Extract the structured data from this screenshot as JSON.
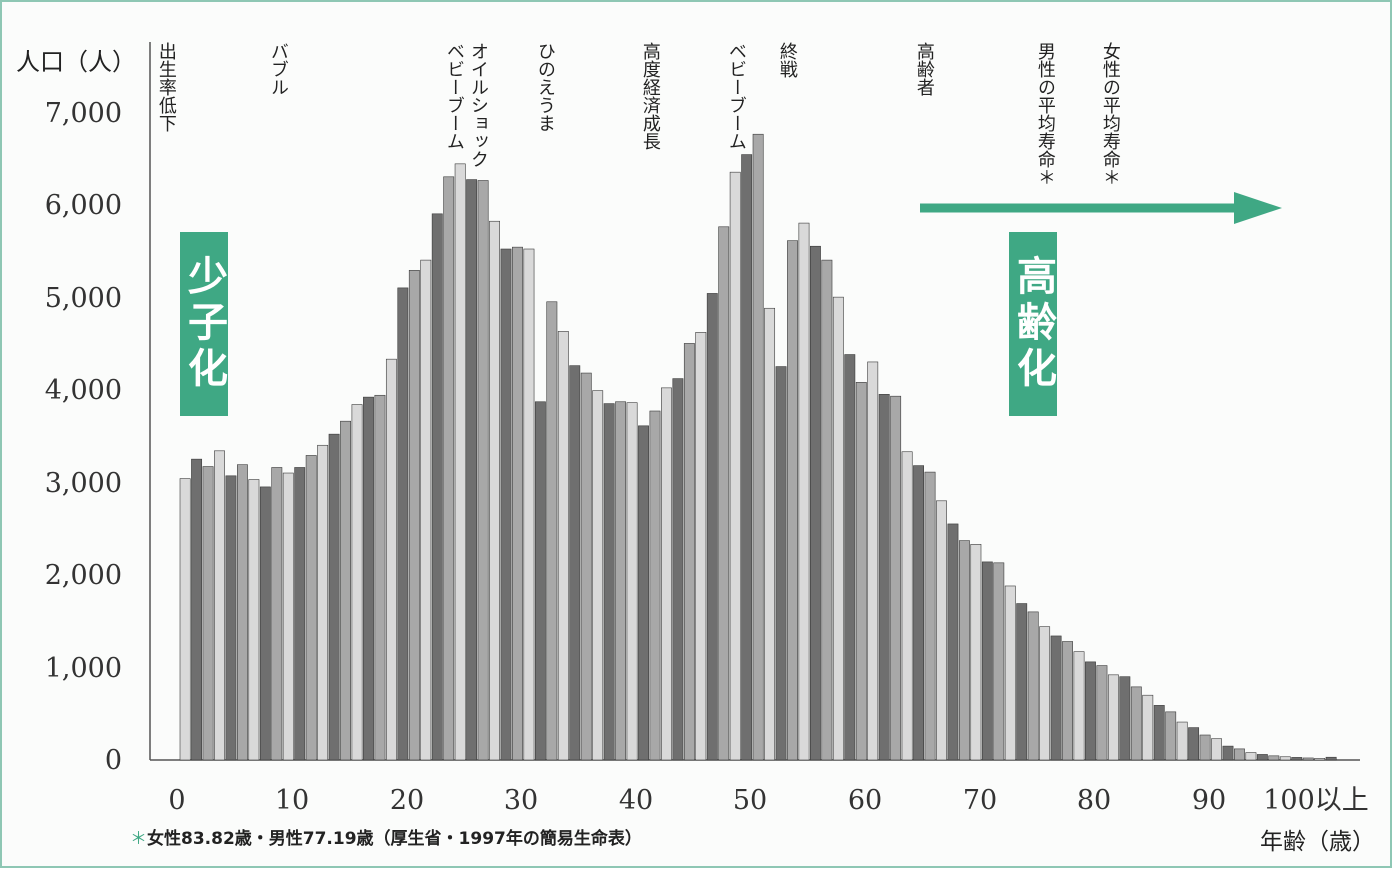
{
  "chart_data": {
    "type": "bar",
    "ylabel": "人口（人）",
    "xlabel": "年齢（歳）",
    "ylim": [
      0,
      7000
    ],
    "yticks": [
      "7,000",
      "6,000",
      "5,000",
      "4,000",
      "3,000",
      "2,000",
      "1,000",
      "0"
    ],
    "xticks": [
      "0",
      "10",
      "20",
      "30",
      "40",
      "50",
      "60",
      "70",
      "80",
      "90",
      "100以上"
    ],
    "ages_start": 0,
    "values": [
      3040,
      3250,
      3170,
      3340,
      3070,
      3190,
      3030,
      2950,
      3160,
      3100,
      3160,
      3290,
      3400,
      3520,
      3660,
      3840,
      3920,
      3940,
      4330,
      5100,
      5290,
      5400,
      5900,
      6300,
      6440,
      6270,
      6260,
      5820,
      5520,
      5540,
      5520,
      3870,
      4950,
      4630,
      4260,
      4180,
      3990,
      3850,
      3870,
      3860,
      3610,
      3770,
      4020,
      4120,
      4500,
      4620,
      5040,
      5760,
      6350,
      6540,
      6760,
      4880,
      4250,
      5610,
      5800,
      5550,
      5400,
      5000,
      4380,
      4080,
      4300,
      3950,
      3930,
      3330,
      3180,
      3110,
      2800,
      2550,
      2370,
      2330,
      2140,
      2130,
      1880,
      1690,
      1600,
      1440,
      1340,
      1280,
      1170,
      1060,
      1020,
      920,
      900,
      790,
      700,
      590,
      520,
      410,
      350,
      270,
      230,
      150,
      120,
      80,
      60,
      45,
      35,
      28,
      22,
      18,
      30
    ],
    "shade_colors": [
      "#d9d9d9",
      "#6f6f6f",
      "#a8a8a8"
    ],
    "annotations": [
      "出生率低下",
      "バブル",
      "オイルショック",
      "ベビーブーム",
      "ひのえうま",
      "高度経済成長",
      "ベビーブーム",
      "終戦",
      "高齢者",
      "男性の平均寿命＊",
      "女性の平均寿命＊"
    ],
    "badges": [
      "少子化",
      "高齢化"
    ],
    "footnote_star": "＊",
    "footnote": "女性83.82歳・男性77.19歳（厚生省・1997年の簡易生命表）"
  },
  "colors": {
    "accent": "#3fa884",
    "axis": "#555555"
  }
}
